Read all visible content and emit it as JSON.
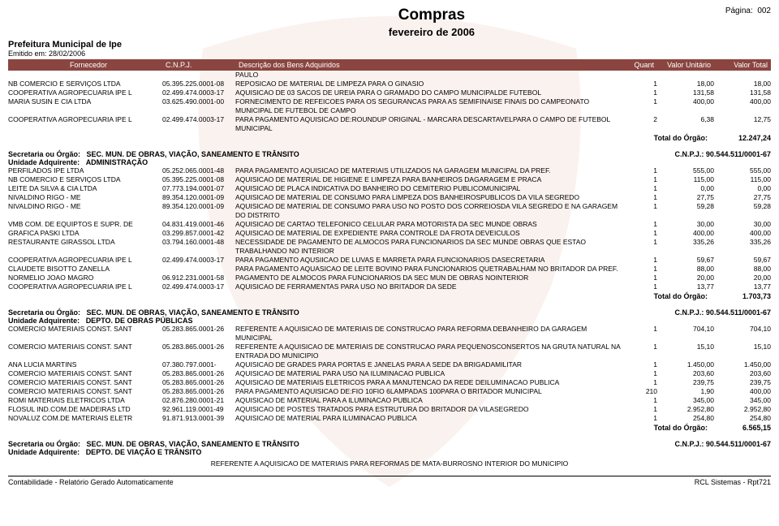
{
  "header": {
    "title": "Compras",
    "subtitle": "fevereiro de 2006",
    "page_label": "Página:",
    "page_num": "002",
    "prefeitura": "Prefeitura Municipal de Ipe",
    "emitido_label": "Emitido em:",
    "emitido_date": "28/02/2006"
  },
  "columns": {
    "fornecedor": "Fornecedor",
    "cnpj": "C.N.P.J.",
    "descricao": "Descrição dos Bens Adquiridos",
    "quant": "Quant",
    "unit": "Valor Unitário",
    "total": "Valor Total"
  },
  "colors": {
    "header_bg": "#8b4540",
    "header_text": "#ffffff",
    "watermark": "#eecfc0"
  },
  "sections": [
    {
      "pre_rows": [
        {
          "forn": "",
          "cnpj": "",
          "desc": "PAULO",
          "q": "",
          "u": "",
          "t": ""
        },
        {
          "forn": "NB COMERCIO E SERVIÇOS LTDA",
          "cnpj": "05.395.225.0001-08",
          "desc": "REPOSICAO DE MATERIAL DE LIMPEZA PARA O GINASIO",
          "q": "1",
          "u": "18,00",
          "t": "18,00"
        },
        {
          "forn": "COOPERATIVA AGROPECUARIA IPE L",
          "cnpj": "02.499.474.0003-17",
          "desc": "AQUISICAO DE 03 SACOS DE UREIA PARA O GRAMADO DO CAMPO MUNICIPALDE FUTEBOL",
          "q": "1",
          "u": "131,58",
          "t": "131,58"
        },
        {
          "forn": "MARIA SUSIN E CIA LTDA",
          "cnpj": "03.625.490.0001-00",
          "desc": "FORNECIMENTO DE REFEICOES PARA OS SEGURANCAS PARA AS SEMIFINAISE FINAIS DO CAMPEONATO MUNICIPAL DE FUTEBOL DE CAMPO",
          "q": "1",
          "u": "400,00",
          "t": "400,00"
        },
        {
          "forn": "COOPERATIVA AGROPECUARIA IPE L",
          "cnpj": "02.499.474.0003-17",
          "desc": "PARA PAGAMENTO AQUISICAO DE:ROUNDUP ORIGINAL - MARCARA DESCARTAVELPARA O CAMPO DE FUTEBOL MUNICIPAL",
          "q": "2",
          "u": "6,38",
          "t": "12,75"
        }
      ],
      "total_label": "Total do Órgão:",
      "total_value": "12.247,24"
    },
    {
      "secretaria_label": "Secretaria ou Órgão:",
      "secretaria": "SEC. MUN. DE OBRAS, VIAÇÃO, SANEAMENTO E TRÂNSITO",
      "cnpj_label": "C.N.P.J.:",
      "cnpj": "90.544.511/0001-67",
      "unidade_label": "Unidade Adquirente:",
      "unidade": "ADMINISTRAÇÃO",
      "rows": [
        {
          "forn": "PERFILADOS IPE LTDA",
          "cnpj": "05.252.065.0001-48",
          "desc": "PARA PAGAMENTO AQUISICAO DE MATERIAIS UTILIZADOS NA GARAGEM MUNICIPAL DA PREF.",
          "q": "1",
          "u": "555,00",
          "t": "555,00"
        },
        {
          "forn": "NB COMERCIO E SERVIÇOS LTDA",
          "cnpj": "05.395.225.0001-08",
          "desc": "AQUISICAO DE MATERIAL DE HIGIENE E LIMPEZA PARA BANHEIROS DAGARAGEM E PRACA",
          "q": "1",
          "u": "115,00",
          "t": "115,00"
        },
        {
          "forn": "LEITE DA SILVA & CIA LTDA",
          "cnpj": "07.773.194.0001-07",
          "desc": "AQUISICAO DE PLACA INDICATIVA DO BANHEIRO DO CEMITERIO PUBLICOMUNICIPAL",
          "q": "1",
          "u": "0,00",
          "t": "0,00"
        },
        {
          "forn": "NIVALDINO RIGO - ME",
          "cnpj": "89.354.120.0001-09",
          "desc": "AQUISICAO DE MATERIAL DE CONSUMO PARA LIMPEZA DOS BANHEIROSPUBLICOS DA VILA SEGREDO",
          "q": "1",
          "u": "27,75",
          "t": "27,75"
        },
        {
          "forn": "NIVALDINO RIGO - ME",
          "cnpj": "89.354.120.0001-09",
          "desc": "AQUISICAO DE MATERIAL DE CONSUMO PARA USO NO POSTO DOS CORREIOSDA VILA SEGREDO E NA GARAGEM DO DISTRITO",
          "q": "1",
          "u": "59,28",
          "t": "59,28"
        },
        {
          "forn": "VMB COM. DE EQUIPTOS E SUPR. DE",
          "cnpj": "04.831.419.0001-46",
          "desc": "AQUISICAO DE CARTAO TELEFONICO CELULAR PARA MOTORISTA DA SEC MUNDE OBRAS",
          "q": "1",
          "u": "30,00",
          "t": "30,00"
        },
        {
          "forn": "GRAFICA PASKI LTDA",
          "cnpj": "03.299.857.0001-42",
          "desc": "AQUISICAO DE MATERIAL DE EXPEDIENTE PARA CONTROLE DA FROTA DEVEICULOS",
          "q": "1",
          "u": "400,00",
          "t": "400,00"
        },
        {
          "forn": "RESTAURANTE GIRASSOL LTDA",
          "cnpj": "03.794.160.0001-48",
          "desc": "NECESSIDADE DE PAGAMENTO DE ALMOCOS PARA FUNCIONARIOS DA SEC MUNDE OBRAS QUE ESTAO TRABALHANDO NO INTERIOR",
          "q": "1",
          "u": "335,26",
          "t": "335,26"
        },
        {
          "forn": "COOPERATIVA AGROPECUARIA IPE L",
          "cnpj": "02.499.474.0003-17",
          "desc": "PARA PAGAMENTO AQUSIICAO DE LUVAS E MARRETA PARA FUNCIONARIOS DASECRETARIA",
          "q": "1",
          "u": "59,67",
          "t": "59,67"
        },
        {
          "forn": "CLAUDETE BISOTTO ZANELLA",
          "cnpj": "",
          "desc": "PARA PAGAMENTO AQUASICAO DE LEITE BOVINO PARA FUNCIONARIOS QUETRABALHAM NO BRITADOR DA PREF.",
          "q": "1",
          "u": "88,00",
          "t": "88,00"
        },
        {
          "forn": "NORMELIO JOAO MAGRO",
          "cnpj": "06.912.231.0001-58",
          "desc": "PAGAMENTO DE ALMOCOS PARA FUNCIONARIOS DA SEC MUN DE OBRAS NOINTERIOR",
          "q": "1",
          "u": "20,00",
          "t": "20,00"
        },
        {
          "forn": "COOPERATIVA AGROPECUARIA IPE L",
          "cnpj": "02.499.474.0003-17",
          "desc": "AQUISICAO DE FERRAMENTAS PARA USO NO BRITADOR DA SEDE",
          "q": "1",
          "u": "13,77",
          "t": "13,77"
        }
      ],
      "total_label": "Total do Órgão:",
      "total_value": "1.703,73"
    },
    {
      "secretaria_label": "Secretaria ou Órgão:",
      "secretaria": "SEC. MUN. DE OBRAS, VIAÇÃO, SANEAMENTO E TRÂNSITO",
      "cnpj_label": "C.N.P.J.:",
      "cnpj": "90.544.511/0001-67",
      "unidade_label": "Unidade Adquirente:",
      "unidade": "DEPTO. DE OBRAS PÚBLICAS",
      "rows": [
        {
          "forn": "COMERCIO MATERIAIS CONST. SANT",
          "cnpj": "05.283.865.0001-26",
          "desc": "REFERENTE A AQUISICAO DE MATERIAIS DE CONSTRUCAO PARA REFORMA DEBANHEIRO DA GARAGEM MUNICIPAL",
          "q": "1",
          "u": "704,10",
          "t": "704,10"
        },
        {
          "forn": "COMERCIO MATERIAIS CONST. SANT",
          "cnpj": "05.283.865.0001-26",
          "desc": "REFERENTE A AQUISICAO DE MATERIAIS DE CONSTRUCAO PARA PEQUENOSCONSERTOS NA GRUTA NATURAL NA ENTRADA DO MUNICIPIO",
          "q": "1",
          "u": "15,10",
          "t": "15,10"
        },
        {
          "forn": "ANA LUCIA MARTINS",
          "cnpj": "07.380.797.0001-",
          "desc": "AQUISICAO DE GRADES PARA PORTAS E JANELAS PARA A SEDE DA BRIGADAMILITAR",
          "q": "1",
          "u": "1.450,00",
          "t": "1.450,00"
        },
        {
          "forn": "COMERCIO MATERIAIS CONST. SANT",
          "cnpj": "05.283.865.0001-26",
          "desc": "AQUISICAO DE MATERIAL PARA USO NA ILUMINACAO PUBLICA",
          "q": "1",
          "u": "203,60",
          "t": "203,60"
        },
        {
          "forn": "COMERCIO MATERIAIS CONST. SANT",
          "cnpj": "05.283.865.0001-26",
          "desc": "AQUISICAO DE MATERIAIS ELETRICOS PARA A MANUTENCAO DA REDE DEILUMINACAO PUBLICA",
          "q": "1",
          "u": "239,75",
          "t": "239,75"
        },
        {
          "forn": "COMERCIO MATERIAIS CONST. SANT",
          "cnpj": "05.283.865.0001-26",
          "desc": "PARA PAGAMENTO AQUISICAO DE:FIO 10FIO 6LAMPADAS 100PARA O BRITADOR MUNICIPAL",
          "q": "210",
          "u": "1,90",
          "t": "400,00"
        },
        {
          "forn": "ROMI MATERIAIS ELETRICOS LTDA",
          "cnpj": "02.876.280.0001-21",
          "desc": "AQUISICAO DE MATERIAL PARA A ILUMINACAO PUBLICA",
          "q": "1",
          "u": "345,00",
          "t": "345,00"
        },
        {
          "forn": "FLOSUL IND.COM.DE MADEIRAS LTD",
          "cnpj": "92.961.119.0001-49",
          "desc": "AQUISICAO DE POSTES TRATADOS PARA ESTRUTURA DO BRITADOR DA VILASEGREDO",
          "q": "1",
          "u": "2.952,80",
          "t": "2.952,80"
        },
        {
          "forn": "NOVALUZ COM.DE MATERIAIS ELETR",
          "cnpj": "91.871.913.0001-39",
          "desc": "AQUISICAO DE MATERIAL PARA ILUMINACAO PUBLICA",
          "q": "1",
          "u": "254,80",
          "t": "254,80"
        }
      ],
      "total_label": "Total do Órgão:",
      "total_value": "6.565,15"
    },
    {
      "secretaria_label": "Secretaria ou Órgão:",
      "secretaria": "SEC. MUN. DE OBRAS, VIAÇÃO, SANEAMENTO E TRÂNSITO",
      "cnpj_label": "C.N.P.J.:",
      "cnpj": "90.544.511/0001-67",
      "unidade_label": "Unidade Adquirente:",
      "unidade": "DEPTO. DE VIAÇÃO E TRÂNSITO",
      "note": "REFERENTE A AQUISICAO DE MATERIAIS PARA REFORMAS DE MATA-BURROSNO INTERIOR DO MUNICIPIO"
    }
  ],
  "footer": {
    "left": "Contabilidade - Relatório Gerado Automaticamente",
    "right": "RCL Sistemas - Rpt721"
  }
}
